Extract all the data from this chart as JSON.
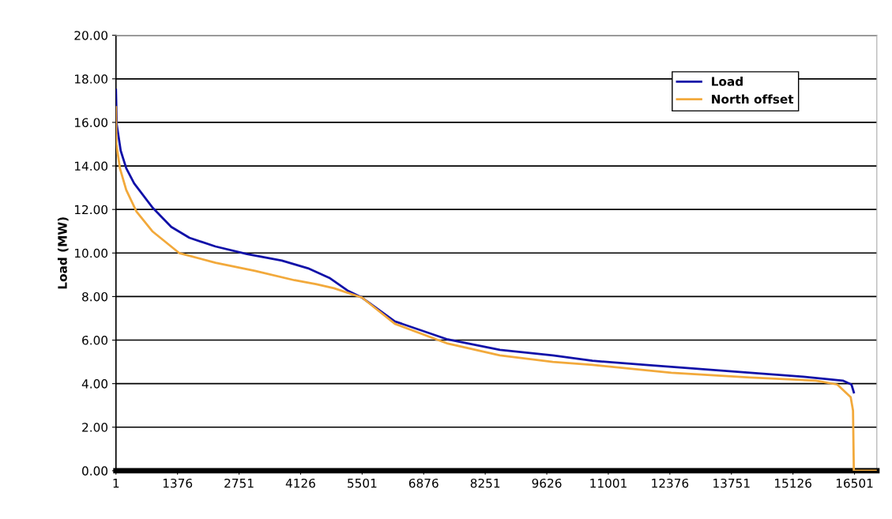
{
  "chart_data": {
    "type": "line",
    "ylabel": "Load (MW)",
    "xlim": [
      1,
      17000
    ],
    "xticks": [
      1,
      1376,
      2751,
      4126,
      5501,
      6876,
      8251,
      9626,
      11001,
      12376,
      13751,
      15126,
      16501
    ],
    "ylim": [
      0,
      20
    ],
    "yticks": [
      {
        "value": 0,
        "label": "0.00"
      },
      {
        "value": 2,
        "label": "2.00"
      },
      {
        "value": 4,
        "label": "4.00"
      },
      {
        "value": 6,
        "label": "6.00"
      },
      {
        "value": 8,
        "label": "8.00"
      },
      {
        "value": 10,
        "label": "10.00"
      },
      {
        "value": 12,
        "label": "12.00"
      },
      {
        "value": 14,
        "label": "14.00"
      },
      {
        "value": 16,
        "label": "16.00"
      },
      {
        "value": 18,
        "label": "18.00"
      },
      {
        "value": 20,
        "label": "20.00"
      }
    ],
    "grid": "y",
    "legend": "top right",
    "marker": "none",
    "line_style": "solid",
    "series": [
      {
        "name": "Load",
        "color": "#1010a8",
        "x": [
          1,
          19,
          107,
          230,
          407,
          813,
          1237,
          1642,
          2225,
          2931,
          3708,
          4290,
          4767,
          5172,
          5500,
          6232,
          7414,
          8579,
          9761,
          10644,
          11826,
          13000,
          14174,
          15357,
          16239,
          16433,
          16486
        ],
        "values": [
          17.5,
          15.9,
          14.7,
          13.9,
          13.2,
          12.1,
          11.2,
          10.7,
          10.3,
          9.95,
          9.65,
          9.3,
          8.86,
          8.28,
          7.95,
          6.86,
          6.03,
          5.55,
          5.3,
          5.05,
          4.86,
          4.68,
          4.5,
          4.32,
          4.14,
          3.96,
          3.6
        ]
      },
      {
        "name": "North offset",
        "color": "#f2a93b",
        "x": [
          1,
          10,
          89,
          230,
          460,
          813,
          1413,
          2225,
          3107,
          3990,
          4466,
          4872,
          5500,
          6232,
          7414,
          8579,
          9761,
          10644,
          12409,
          14174,
          15639,
          16116,
          16416,
          16468,
          16486,
          17000
        ],
        "values": [
          16.7,
          15.0,
          13.9,
          12.9,
          11.9,
          11.0,
          10.0,
          9.55,
          9.18,
          8.75,
          8.57,
          8.38,
          7.95,
          6.75,
          5.84,
          5.3,
          5.0,
          4.86,
          4.5,
          4.28,
          4.14,
          3.96,
          3.38,
          2.76,
          0,
          0
        ]
      }
    ]
  }
}
